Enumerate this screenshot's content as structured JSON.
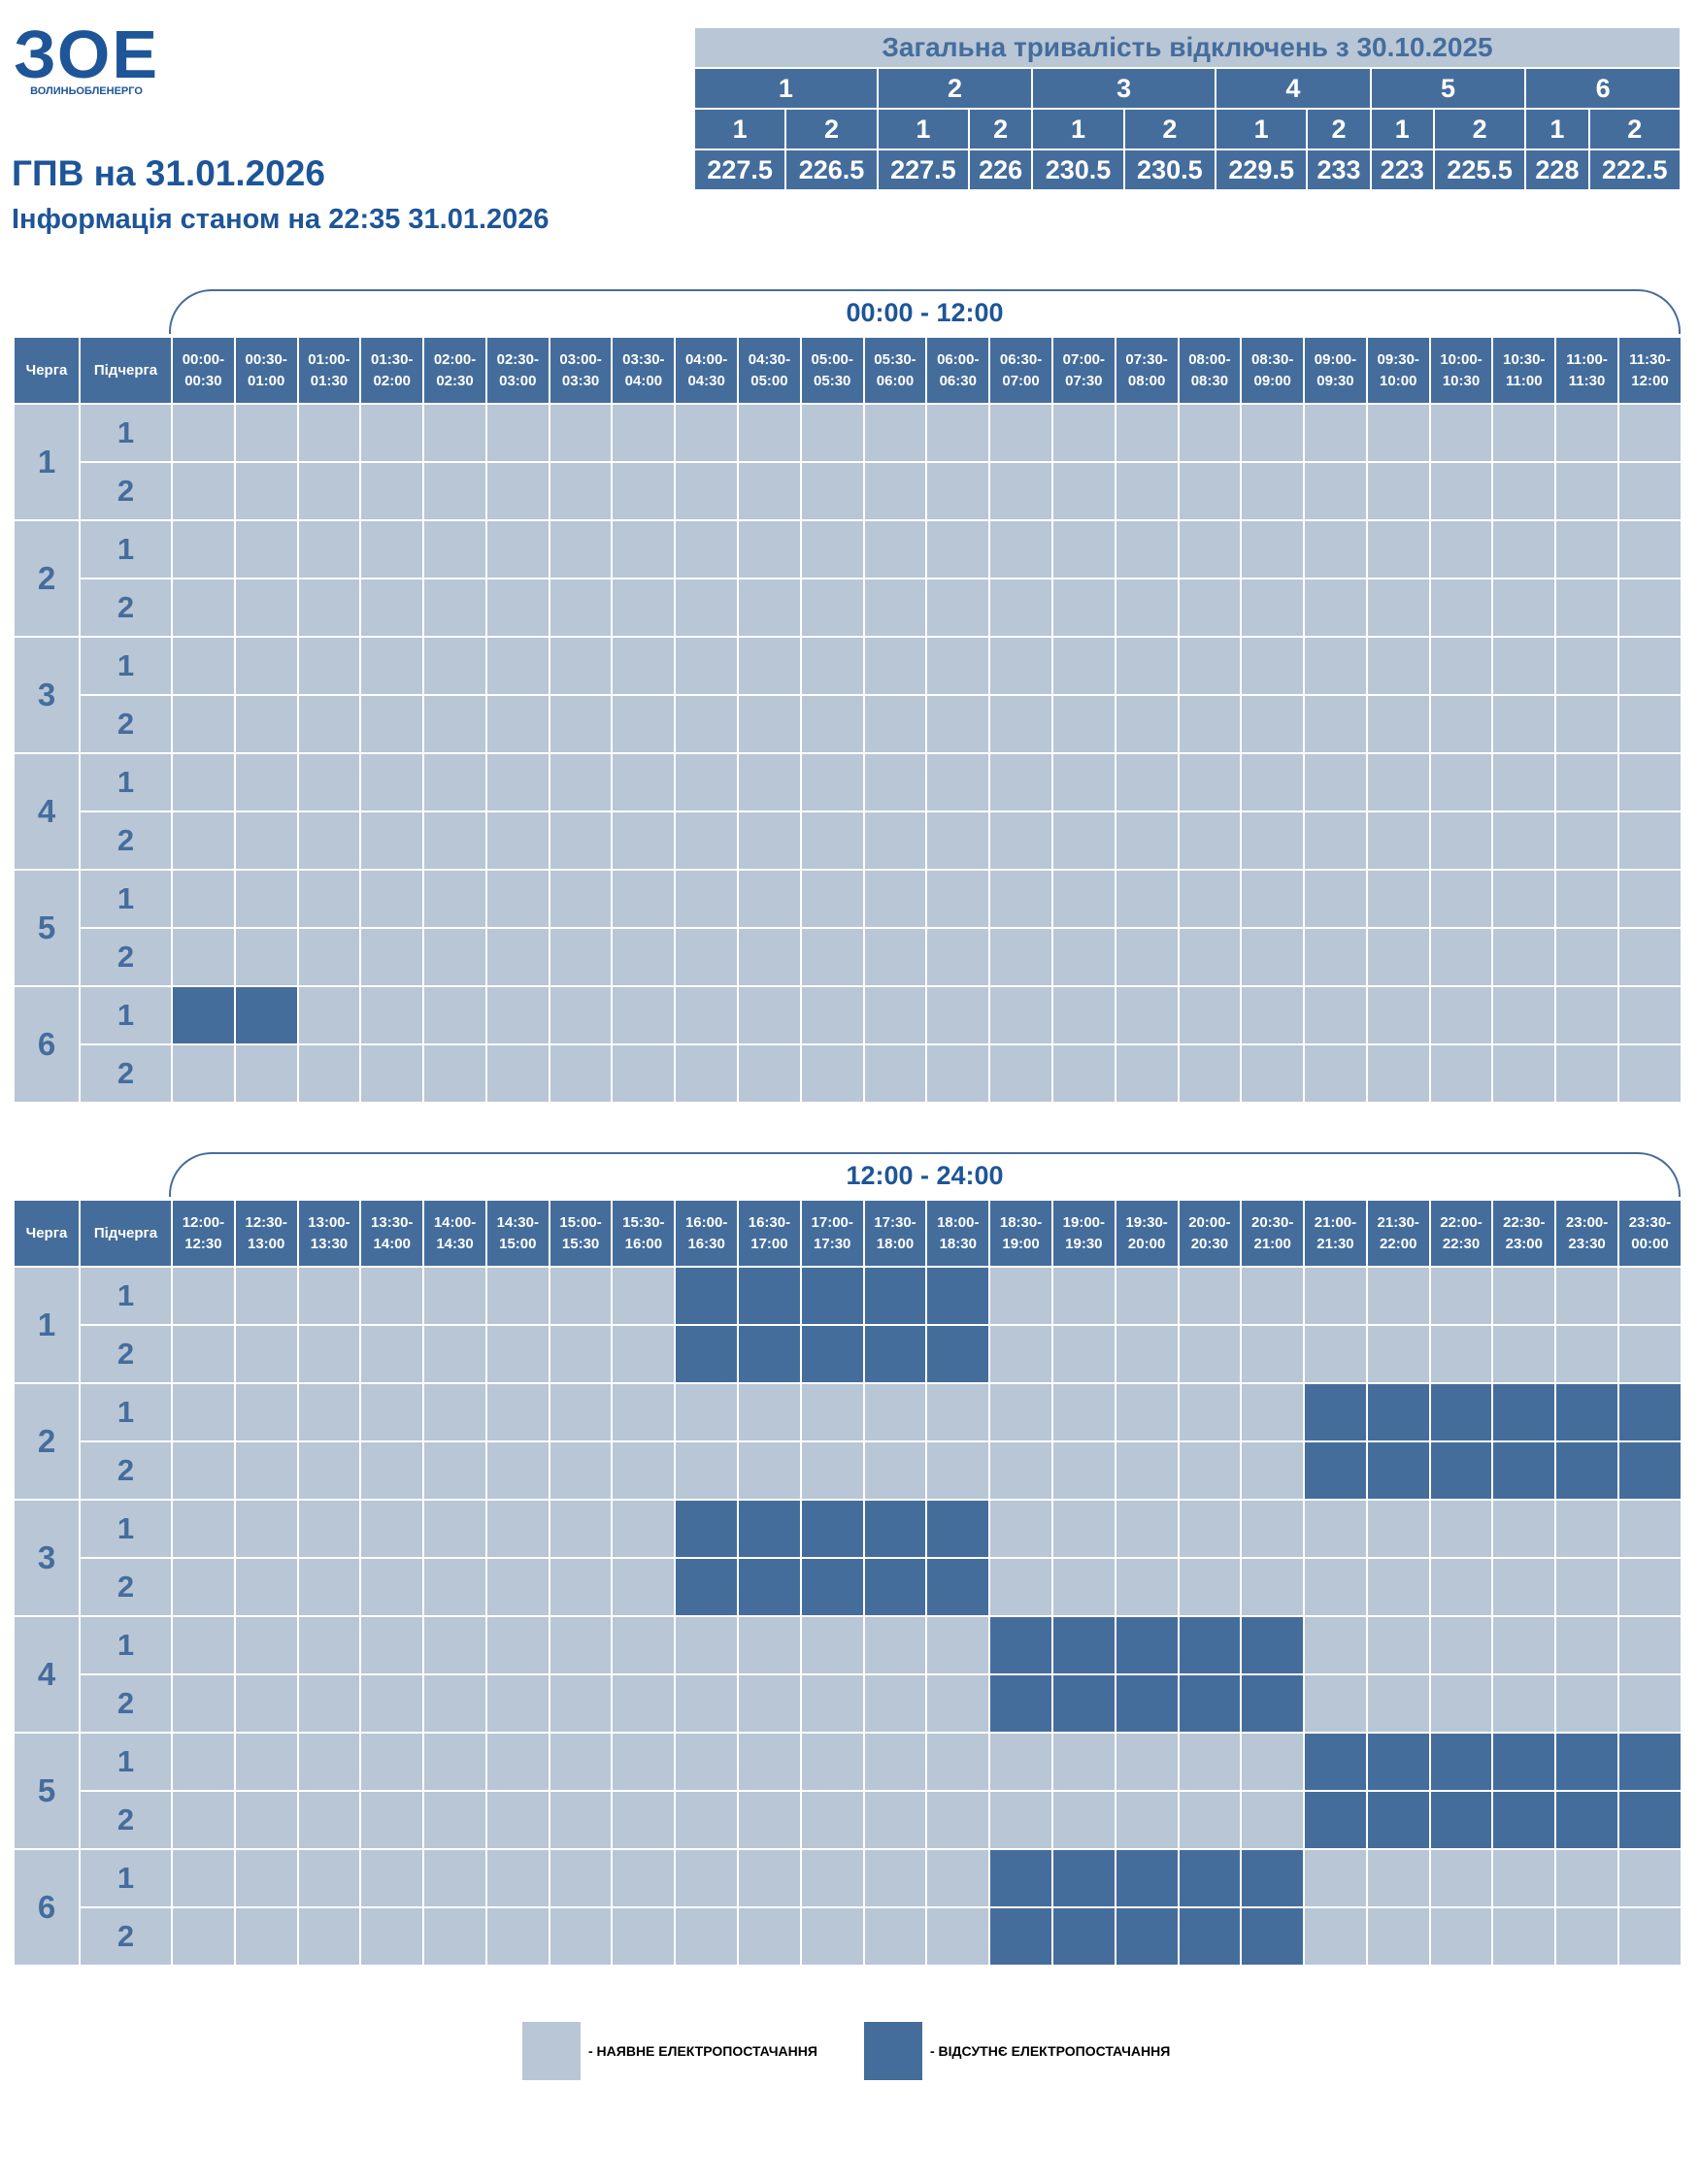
{
  "logo": {
    "mark": "ЗОЕ",
    "name": "ВОЛИНЬОБЛЕНЕРГО"
  },
  "title": "ГПВ на 31.01.2026",
  "subtitle": "Інформація станом на 22:35 31.01.2026",
  "summary": {
    "title": "Загальна тривалість відключень з 30.10.2025",
    "groups": [
      {
        "label": "1",
        "subs": [
          {
            "label": "1",
            "value": 227.5
          },
          {
            "label": "2",
            "value": 226.5
          }
        ]
      },
      {
        "label": "2",
        "subs": [
          {
            "label": "1",
            "value": 227.5
          },
          {
            "label": "2",
            "value": 226
          }
        ]
      },
      {
        "label": "3",
        "subs": [
          {
            "label": "1",
            "value": 230.5
          },
          {
            "label": "2",
            "value": 230.5
          }
        ]
      },
      {
        "label": "4",
        "subs": [
          {
            "label": "1",
            "value": 229.5
          },
          {
            "label": "2",
            "value": 233
          }
        ]
      },
      {
        "label": "5",
        "subs": [
          {
            "label": "1",
            "value": 223
          },
          {
            "label": "2",
            "value": 225.5
          }
        ]
      },
      {
        "label": "6",
        "subs": [
          {
            "label": "1",
            "value": 228
          },
          {
            "label": "2",
            "value": 222.5
          }
        ]
      }
    ]
  },
  "tables": [
    {
      "range": "00:00 - 12:00",
      "headers": {
        "queue": "Черга",
        "subqueue": "Підчерга"
      },
      "slots": [
        "00:00-00:30",
        "00:30-01:00",
        "01:00-01:30",
        "01:30-02:00",
        "02:00-02:30",
        "02:30-03:00",
        "03:00-03:30",
        "03:30-04:00",
        "04:00-04:30",
        "04:30-05:00",
        "05:00-05:30",
        "05:30-06:00",
        "06:00-06:30",
        "06:30-07:00",
        "07:00-07:30",
        "07:30-08:00",
        "08:00-08:30",
        "08:30-09:00",
        "09:00-09:30",
        "09:30-10:00",
        "10:00-10:30",
        "10:30-11:00",
        "11:00-11:30",
        "11:30-12:00"
      ],
      "rows": [
        {
          "queue": "1",
          "subs": [
            {
              "label": "1",
              "off": []
            },
            {
              "label": "2",
              "off": []
            }
          ]
        },
        {
          "queue": "2",
          "subs": [
            {
              "label": "1",
              "off": []
            },
            {
              "label": "2",
              "off": []
            }
          ]
        },
        {
          "queue": "3",
          "subs": [
            {
              "label": "1",
              "off": []
            },
            {
              "label": "2",
              "off": []
            }
          ]
        },
        {
          "queue": "4",
          "subs": [
            {
              "label": "1",
              "off": []
            },
            {
              "label": "2",
              "off": []
            }
          ]
        },
        {
          "queue": "5",
          "subs": [
            {
              "label": "1",
              "off": []
            },
            {
              "label": "2",
              "off": []
            }
          ]
        },
        {
          "queue": "6",
          "subs": [
            {
              "label": "1",
              "off": [
                0,
                1
              ]
            },
            {
              "label": "2",
              "off": []
            }
          ]
        }
      ]
    },
    {
      "range": "12:00 - 24:00",
      "headers": {
        "queue": "Черга",
        "subqueue": "Підчерга"
      },
      "slots": [
        "12:00-12:30",
        "12:30-13:00",
        "13:00-13:30",
        "13:30-14:00",
        "14:00-14:30",
        "14:30-15:00",
        "15:00-15:30",
        "15:30-16:00",
        "16:00-16:30",
        "16:30-17:00",
        "17:00-17:30",
        "17:30-18:00",
        "18:00-18:30",
        "18:30-19:00",
        "19:00-19:30",
        "19:30-20:00",
        "20:00-20:30",
        "20:30-21:00",
        "21:00-21:30",
        "21:30-22:00",
        "22:00-22:30",
        "22:30-23:00",
        "23:00-23:30",
        "23:30-00:00"
      ],
      "rows": [
        {
          "queue": "1",
          "subs": [
            {
              "label": "1",
              "off": [
                8,
                9,
                10,
                11,
                12
              ]
            },
            {
              "label": "2",
              "off": [
                8,
                9,
                10,
                11,
                12
              ]
            }
          ]
        },
        {
          "queue": "2",
          "subs": [
            {
              "label": "1",
              "off": [
                18,
                19,
                20,
                21,
                22,
                23
              ]
            },
            {
              "label": "2",
              "off": [
                18,
                19,
                20,
                21,
                22,
                23
              ]
            }
          ]
        },
        {
          "queue": "3",
          "subs": [
            {
              "label": "1",
              "off": [
                8,
                9,
                10,
                11,
                12
              ]
            },
            {
              "label": "2",
              "off": [
                8,
                9,
                10,
                11,
                12
              ]
            }
          ]
        },
        {
          "queue": "4",
          "subs": [
            {
              "label": "1",
              "off": [
                13,
                14,
                15,
                16,
                17
              ]
            },
            {
              "label": "2",
              "off": [
                13,
                14,
                15,
                16,
                17
              ]
            }
          ]
        },
        {
          "queue": "5",
          "subs": [
            {
              "label": "1",
              "off": [
                18,
                19,
                20,
                21,
                22,
                23
              ]
            },
            {
              "label": "2",
              "off": [
                18,
                19,
                20,
                21,
                22,
                23
              ]
            }
          ]
        },
        {
          "queue": "6",
          "subs": [
            {
              "label": "1",
              "off": [
                13,
                14,
                15,
                16,
                17
              ]
            },
            {
              "label": "2",
              "off": [
                13,
                14,
                15,
                16,
                17
              ]
            }
          ]
        }
      ]
    }
  ],
  "legend": {
    "items": [
      {
        "color": "#b8c6d6",
        "label": "- НАЯВНЕ ЕЛЕКТРОПОСТАЧАННЯ"
      },
      {
        "color": "#456d9c",
        "label": "- ВІДСУТНЄ ЕЛЕКТРОПОСТАЧАННЯ"
      }
    ]
  }
}
